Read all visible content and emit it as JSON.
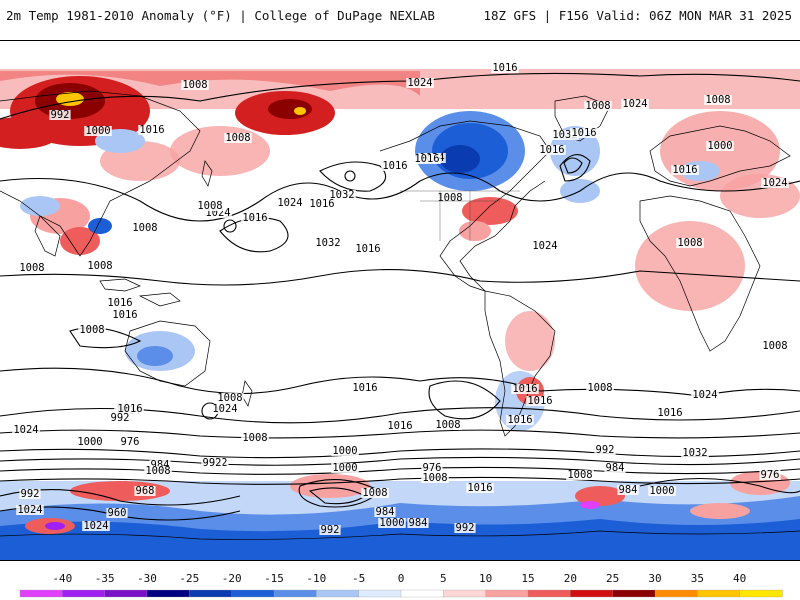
{
  "header": {
    "left_title": "2m Temp 1981-2010 Anomaly (°F) | College of DuPage NEXLAB",
    "right_title": "18Z GFS | F156 Valid: 06Z MON MAR 31 2025"
  },
  "map": {
    "projection": "global equirectangular",
    "field": "2m temperature anomaly",
    "contour_field": "sea level pressure (mb)",
    "pressure_labels": [
      "1016",
      "1024",
      "1008",
      "992",
      "1000",
      "1016",
      "1008",
      "1024",
      "1032",
      "1016",
      "1008",
      "1016",
      "1024",
      "1032",
      "1016",
      "1024",
      "1016",
      "1032",
      "1008",
      "1024",
      "1016",
      "1016",
      "1016",
      "1008",
      "1024",
      "1008",
      "1008",
      "1016",
      "1000",
      "1024",
      "1008",
      "1016",
      "1008",
      "1008",
      "1016",
      "1008",
      "1008",
      "1008",
      "1016",
      "1016",
      "1016",
      "1016",
      "1008",
      "1016",
      "1024",
      "1016",
      "1008",
      "1024",
      "1008",
      "1024",
      "1016",
      "1024",
      "1000",
      "992",
      "976",
      "984",
      "992",
      "1008",
      "976",
      "992",
      "1000",
      "1016",
      "1008",
      "1000",
      "984",
      "992",
      "1032",
      "1024",
      "960",
      "968",
      "1008",
      "984",
      "992",
      "1000",
      "984",
      "992",
      "984",
      "1008",
      "1000",
      "976",
      "992",
      "1024"
    ]
  },
  "legend": {
    "ticks": [
      "-40",
      "-35",
      "-30",
      "-25",
      "-20",
      "-15",
      "-10",
      "-5",
      "0",
      "5",
      "10",
      "15",
      "20",
      "25",
      "30",
      "35",
      "40"
    ],
    "colors": [
      "#e040fb",
      "#a020f0",
      "#7a10c8",
      "#000080",
      "#0b3bb0",
      "#1c5ed6",
      "#5a8ee8",
      "#a9c6f5",
      "#ddeaff",
      "#ffffff",
      "#ffd6d6",
      "#f7a1a1",
      "#ee5c5c",
      "#d01010",
      "#8b0000",
      "#ff8c00",
      "#ffc400",
      "#ffe600"
    ]
  }
}
